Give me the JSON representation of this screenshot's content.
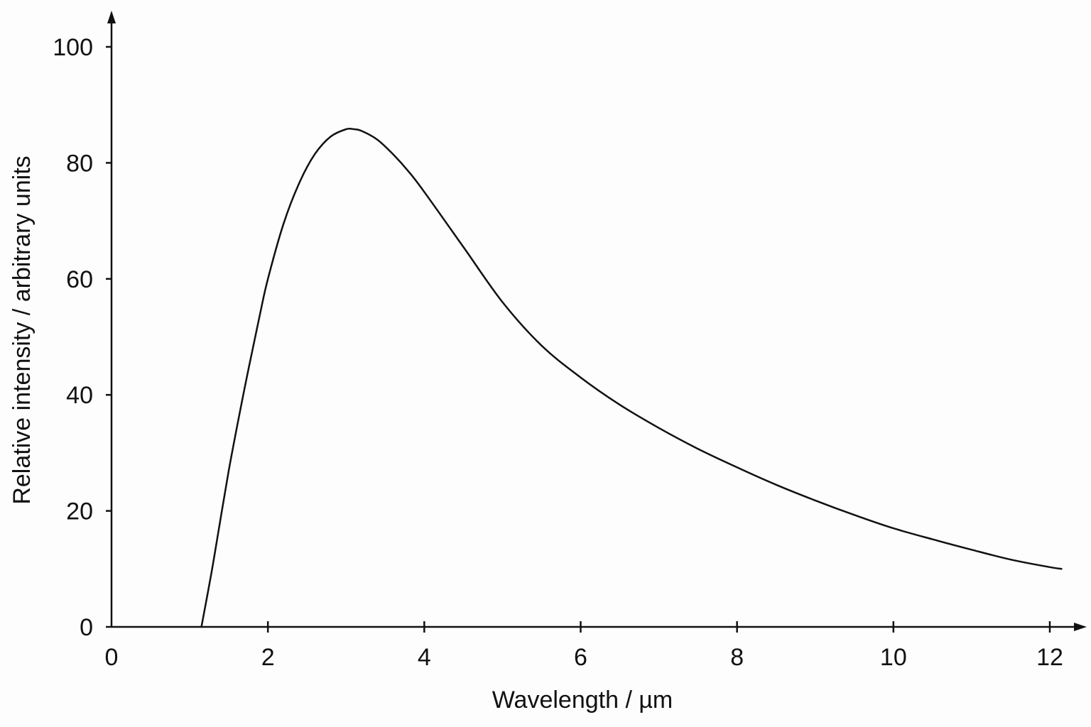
{
  "chart_data": {
    "type": "line",
    "title": "",
    "xlabel": "Wavelength / µm",
    "ylabel": "Relative intensity / arbitrary units",
    "xlim": [
      0,
      12.2
    ],
    "ylim": [
      0,
      100
    ],
    "xticks": [
      0,
      2,
      4,
      6,
      8,
      10,
      12
    ],
    "yticks": [
      0,
      20,
      40,
      60,
      80,
      100
    ],
    "grid": false,
    "legend": "none",
    "line_color": "#111111",
    "series": [
      {
        "x": [
          1.15,
          1.3,
          1.5,
          1.7,
          1.9,
          2.0,
          2.2,
          2.4,
          2.6,
          2.8,
          3.0,
          3.1,
          3.2,
          3.4,
          3.6,
          3.8,
          4.0,
          4.5,
          5.0,
          5.5,
          6.0,
          6.5,
          7.0,
          7.5,
          8.0,
          8.5,
          9.0,
          9.5,
          10.0,
          10.5,
          11.0,
          11.5,
          12.0,
          12.15
        ],
        "y": [
          0,
          11,
          27,
          41,
          54,
          60,
          69.5,
          76.5,
          81.5,
          84.5,
          85.8,
          85.8,
          85.5,
          84,
          81.5,
          78.5,
          75,
          65.5,
          56,
          48.5,
          43,
          38.3,
          34.3,
          30.7,
          27.5,
          24.5,
          21.8,
          19.3,
          17.0,
          15.1,
          13.3,
          11.6,
          10.3,
          10.0
        ]
      }
    ]
  }
}
